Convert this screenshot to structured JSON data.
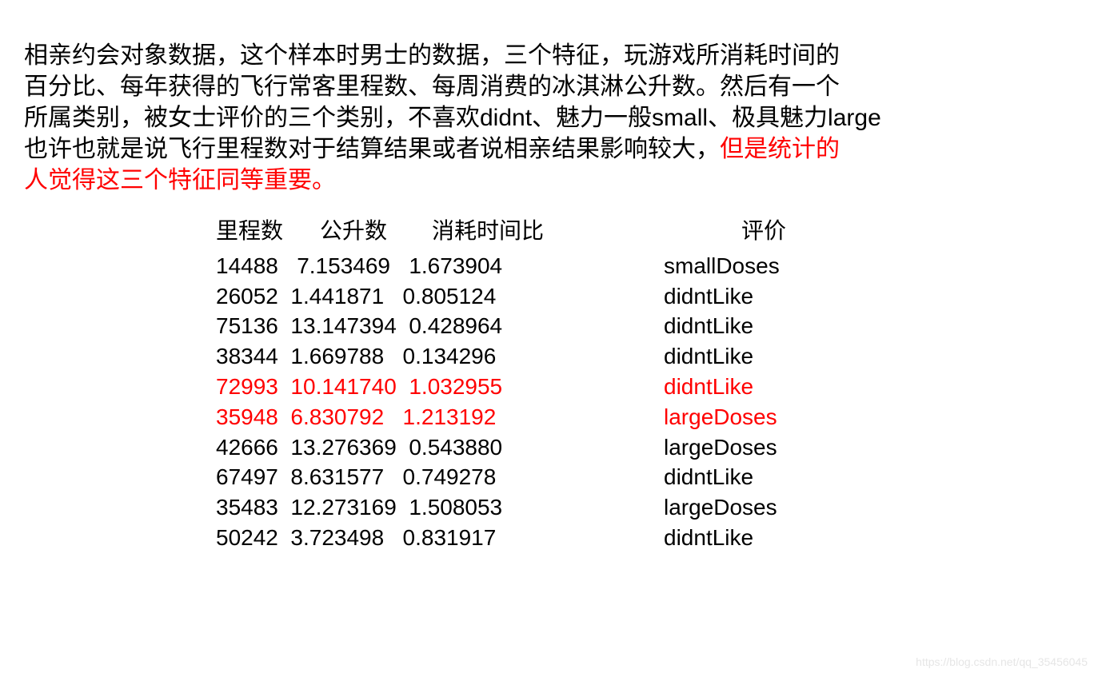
{
  "paragraph": {
    "line1": "相亲约会对象数据，这个样本时男士的数据，三个特征，玩游戏所消耗时间的",
    "line2": "百分比、每年获得的飞行常客里程数、每周消费的冰淇淋公升数。然后有一个",
    "line3": "所属类别，被女士评价的三个类别，不喜欢didnt、魅力一般small、极具魅力large",
    "line4_black": "也许也就是说飞行里程数对于结算结果或者说相亲结果影响较大，",
    "line4_red": "但是统计的",
    "line5_red": "人觉得这三个特征同等重要。"
  },
  "table": {
    "headers": {
      "mileage": "里程数",
      "liters": "公升数",
      "time": "消耗时间比",
      "rating": "评价"
    },
    "rows": [
      {
        "text": "14488   7.153469   1.673904",
        "rating": "smallDoses",
        "highlighted": false
      },
      {
        "text": "26052  1.441871   0.805124",
        "rating": "didntLike",
        "highlighted": false
      },
      {
        "text": "75136  13.147394  0.428964",
        "rating": "didntLike",
        "highlighted": false
      },
      {
        "text": "38344  1.669788   0.134296",
        "rating": "didntLike",
        "highlighted": false
      },
      {
        "text": "72993  10.141740  1.032955",
        "rating": "didntLike",
        "highlighted": true
      },
      {
        "text": "35948  6.830792   1.213192",
        "rating": "largeDoses",
        "highlighted": true
      },
      {
        "text": "42666  13.276369  0.543880",
        "rating": "largeDoses",
        "highlighted": false
      },
      {
        "text": "67497  8.631577   0.749278",
        "rating": "didntLike",
        "highlighted": false
      },
      {
        "text": "35483  12.273169  1.508053",
        "rating": "largeDoses",
        "highlighted": false
      },
      {
        "text": "50242  3.723498   0.831917",
        "rating": "didntLike",
        "highlighted": false
      }
    ]
  },
  "colors": {
    "text_black": "#000000",
    "text_red": "#ff0000",
    "background": "#ffffff",
    "watermark": "#e6e6e6"
  },
  "typography": {
    "paragraph_fontsize": 30,
    "table_fontsize": 28,
    "watermark_fontsize": 14
  },
  "watermark": "https://blog.csdn.net/qq_35456045"
}
